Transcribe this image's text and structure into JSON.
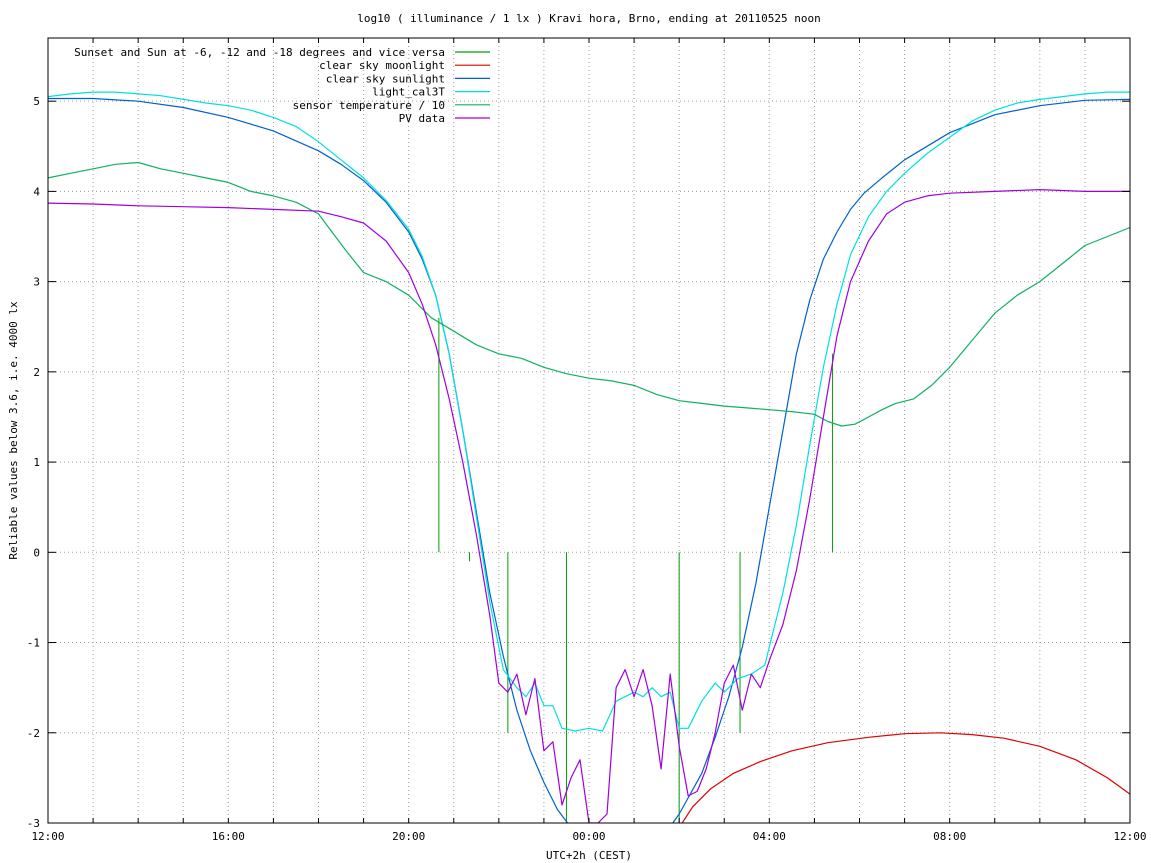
{
  "chart_data": {
    "type": "line",
    "title": "log10 ( illuminance / 1 lx ) Kravi hora, Brno, ending at 20110525 noon",
    "xlabel": "UTC+2h (CEST)",
    "ylabel": "Reliable values below 3.6, i.e. 4000 lx",
    "xlim": [
      0,
      24
    ],
    "ylim": [
      -3,
      5.7
    ],
    "x_ticks": [
      {
        "v": 0,
        "label": "12:00"
      },
      {
        "v": 4,
        "label": "16:00"
      },
      {
        "v": 8,
        "label": "20:00"
      },
      {
        "v": 12,
        "label": "00:00"
      },
      {
        "v": 16,
        "label": "04:00"
      },
      {
        "v": 20,
        "label": "08:00"
      },
      {
        "v": 24,
        "label": "12:00"
      }
    ],
    "x_minor_step": 1,
    "y_ticks": [
      {
        "v": -3,
        "label": "-3"
      },
      {
        "v": -2,
        "label": "-2"
      },
      {
        "v": -1,
        "label": "-1"
      },
      {
        "v": 0,
        "label": "0"
      },
      {
        "v": 1,
        "label": "1"
      },
      {
        "v": 2,
        "label": "2"
      },
      {
        "v": 3,
        "label": "3"
      },
      {
        "v": 4,
        "label": "4"
      },
      {
        "v": 5,
        "label": "5"
      }
    ],
    "grid": true,
    "legend_position": "top-left",
    "series": [
      {
        "name": "Sunset and Sun at -6, -12 and -18 degrees and vice versa",
        "color": "#00a000",
        "style": "impulses",
        "impulses": [
          {
            "x": 8.67,
            "y0": 0,
            "y1": 2.6
          },
          {
            "x": 9.35,
            "y0": 0,
            "y1": -0.1
          },
          {
            "x": 10.2,
            "y0": 0,
            "y1": -2.0
          },
          {
            "x": 11.5,
            "y0": 0,
            "y1": -3.0
          },
          {
            "x": 14.0,
            "y0": 0,
            "y1": -3.0
          },
          {
            "x": 15.35,
            "y0": 0,
            "y1": -2.0
          },
          {
            "x": 17.4,
            "y0": 0,
            "y1": 2.2
          }
        ]
      },
      {
        "name": "clear sky moonlight",
        "color": "#e00000",
        "x": [
          14.0,
          14.3,
          14.7,
          15.2,
          15.8,
          16.5,
          17.3,
          18.2,
          19.0,
          19.8,
          20.5,
          21.2,
          22.0,
          22.8,
          23.5,
          24.0
        ],
        "y": [
          -3.05,
          -2.82,
          -2.62,
          -2.45,
          -2.32,
          -2.2,
          -2.11,
          -2.05,
          -2.01,
          -2.0,
          -2.02,
          -2.06,
          -2.15,
          -2.3,
          -2.5,
          -2.68
        ]
      },
      {
        "name": "clear sky sunlight",
        "color": "#0060d0",
        "x": [
          0,
          1,
          2,
          3,
          4,
          5,
          6,
          6.5,
          7,
          7.5,
          8,
          8.3,
          8.6,
          8.9,
          9.2,
          9.5,
          9.8,
          10.1,
          10.4,
          10.7,
          11.0,
          11.3,
          11.6,
          11.9,
          12.2,
          12.5,
          13.0,
          13.5,
          14.0,
          14.5,
          14.8,
          15.1,
          15.4,
          15.7,
          16.0,
          16.3,
          16.6,
          16.9,
          17.2,
          17.5,
          17.8,
          18.1,
          18.5,
          19,
          20,
          21,
          22,
          23,
          24
        ],
        "y": [
          5.03,
          5.03,
          5.0,
          4.93,
          4.82,
          4.67,
          4.45,
          4.3,
          4.12,
          3.88,
          3.55,
          3.25,
          2.85,
          2.2,
          1.35,
          0.45,
          -0.45,
          -1.15,
          -1.75,
          -2.2,
          -2.55,
          -2.85,
          -3.05,
          -3.25,
          -3.4,
          -3.45,
          -3.45,
          -3.25,
          -2.9,
          -2.45,
          -2.05,
          -1.6,
          -1.05,
          -0.35,
          0.5,
          1.35,
          2.2,
          2.8,
          3.25,
          3.55,
          3.8,
          3.98,
          4.15,
          4.35,
          4.65,
          4.85,
          4.95,
          5.01,
          5.02
        ]
      },
      {
        "name": "light_cal3T",
        "color": "#00e0e0",
        "x": [
          0,
          0.5,
          1,
          1.5,
          2,
          2.5,
          3,
          3.5,
          4,
          4.5,
          5,
          5.5,
          6,
          6.5,
          7,
          7.5,
          8,
          8.3,
          8.6,
          8.9,
          9.2,
          9.5,
          9.8,
          10.1,
          10.4,
          10.6,
          10.8,
          11.0,
          11.2,
          11.4,
          11.7,
          12.0,
          12.3,
          12.6,
          12.8,
          13.0,
          13.2,
          13.4,
          13.6,
          13.8,
          14.0,
          14.2,
          14.5,
          14.8,
          15.0,
          15.3,
          15.6,
          15.9,
          16.1,
          16.3,
          16.6,
          16.9,
          17.2,
          17.5,
          17.8,
          18.2,
          18.6,
          19.0,
          19.5,
          20,
          20.5,
          21,
          21.5,
          22,
          22.5,
          23,
          23.5,
          24
        ],
        "y": [
          5.05,
          5.08,
          5.1,
          5.1,
          5.08,
          5.06,
          5.02,
          4.98,
          4.95,
          4.9,
          4.82,
          4.72,
          4.55,
          4.35,
          4.15,
          3.9,
          3.58,
          3.28,
          2.85,
          2.2,
          1.35,
          0.4,
          -0.55,
          -1.3,
          -1.5,
          -1.6,
          -1.45,
          -1.7,
          -1.7,
          -1.95,
          -1.98,
          -1.95,
          -1.98,
          -1.65,
          -1.6,
          -1.55,
          -1.6,
          -1.5,
          -1.6,
          -1.55,
          -1.95,
          -1.95,
          -1.65,
          -1.45,
          -1.55,
          -1.4,
          -1.35,
          -1.25,
          -0.85,
          -0.45,
          0.3,
          1.2,
          2.05,
          2.75,
          3.3,
          3.72,
          4.0,
          4.2,
          4.42,
          4.6,
          4.78,
          4.9,
          4.98,
          5.02,
          5.05,
          5.08,
          5.1,
          5.1
        ]
      },
      {
        "name": "sensor temperature / 10",
        "color": "#10b060",
        "x": [
          0,
          0.5,
          1,
          1.5,
          2,
          2.5,
          3,
          3.5,
          4,
          4.5,
          5,
          5.5,
          6,
          6.3,
          6.6,
          7,
          7.5,
          8,
          8.5,
          9,
          9.5,
          10,
          10.5,
          11,
          11.5,
          12,
          12.5,
          13,
          13.5,
          14,
          14.5,
          15,
          15.5,
          16,
          16.5,
          17,
          17.3,
          17.6,
          17.9,
          18.2,
          18.5,
          18.8,
          19.2,
          19.6,
          20,
          20.5,
          21,
          21.5,
          22,
          22.5,
          23,
          23.5,
          24
        ],
        "y": [
          4.15,
          4.2,
          4.25,
          4.3,
          4.32,
          4.25,
          4.2,
          4.15,
          4.1,
          4.0,
          3.95,
          3.88,
          3.75,
          3.55,
          3.35,
          3.1,
          3.0,
          2.85,
          2.6,
          2.45,
          2.3,
          2.2,
          2.15,
          2.05,
          1.98,
          1.93,
          1.9,
          1.85,
          1.75,
          1.68,
          1.65,
          1.62,
          1.6,
          1.58,
          1.56,
          1.53,
          1.45,
          1.4,
          1.42,
          1.5,
          1.58,
          1.65,
          1.7,
          1.85,
          2.05,
          2.35,
          2.65,
          2.85,
          3.0,
          3.2,
          3.4,
          3.5,
          3.6
        ]
      },
      {
        "name": "PV data",
        "color": "#a000e0",
        "x": [
          0,
          1,
          2,
          3,
          4,
          5,
          6,
          6.5,
          7,
          7.5,
          8,
          8.3,
          8.6,
          8.9,
          9.2,
          9.5,
          9.8,
          10.0,
          10.2,
          10.4,
          10.6,
          10.8,
          11.0,
          11.2,
          11.4,
          11.6,
          11.8,
          12.0,
          12.2,
          12.4,
          12.6,
          12.8,
          13.0,
          13.2,
          13.4,
          13.6,
          13.8,
          14.0,
          14.2,
          14.4,
          14.6,
          14.8,
          15.0,
          15.2,
          15.4,
          15.6,
          15.8,
          16.0,
          16.3,
          16.6,
          16.9,
          17.2,
          17.5,
          17.8,
          18.2,
          18.6,
          19.0,
          19.5,
          20,
          21,
          22,
          23,
          24
        ],
        "y": [
          3.87,
          3.86,
          3.84,
          3.83,
          3.82,
          3.8,
          3.78,
          3.72,
          3.65,
          3.45,
          3.1,
          2.75,
          2.3,
          1.7,
          1.0,
          0.2,
          -0.7,
          -1.45,
          -1.55,
          -1.35,
          -1.8,
          -1.4,
          -2.2,
          -2.1,
          -2.8,
          -2.5,
          -2.3,
          -3.0,
          -3.0,
          -2.9,
          -1.5,
          -1.3,
          -1.6,
          -1.3,
          -1.7,
          -2.4,
          -1.35,
          -2.15,
          -2.7,
          -2.65,
          -2.4,
          -2.0,
          -1.45,
          -1.25,
          -1.75,
          -1.35,
          -1.5,
          -1.2,
          -0.8,
          -0.2,
          0.6,
          1.5,
          2.4,
          3.0,
          3.45,
          3.75,
          3.88,
          3.95,
          3.98,
          4.0,
          4.02,
          4.0,
          4.0
        ]
      }
    ]
  }
}
